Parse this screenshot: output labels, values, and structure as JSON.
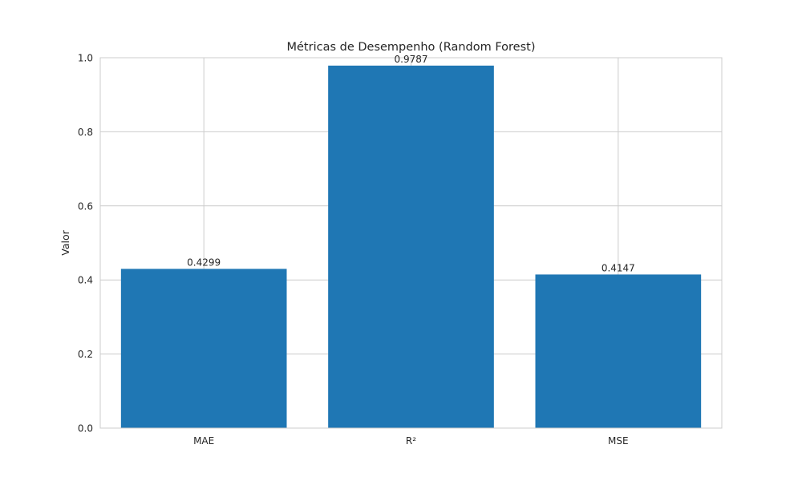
{
  "chart_data": {
    "type": "bar",
    "title": "Métricas de Desempenho (Random Forest)",
    "xlabel": "",
    "ylabel": "Valor",
    "categories": [
      "MAE",
      "R²",
      "MSE"
    ],
    "values": [
      0.4299,
      0.9787,
      0.4147
    ],
    "value_labels": [
      "0.4299",
      "0.9787",
      "0.4147"
    ],
    "ylim": [
      0,
      1.0
    ],
    "yticks": [
      0.0,
      0.2,
      0.4,
      0.6,
      0.8,
      1.0
    ],
    "ytick_labels": [
      "0.0",
      "0.2",
      "0.4",
      "0.6",
      "0.8",
      "1.0"
    ],
    "grid": true,
    "bar_color": "#1f77b4",
    "grid_color": "#cccccc",
    "text_color": "#262626"
  }
}
